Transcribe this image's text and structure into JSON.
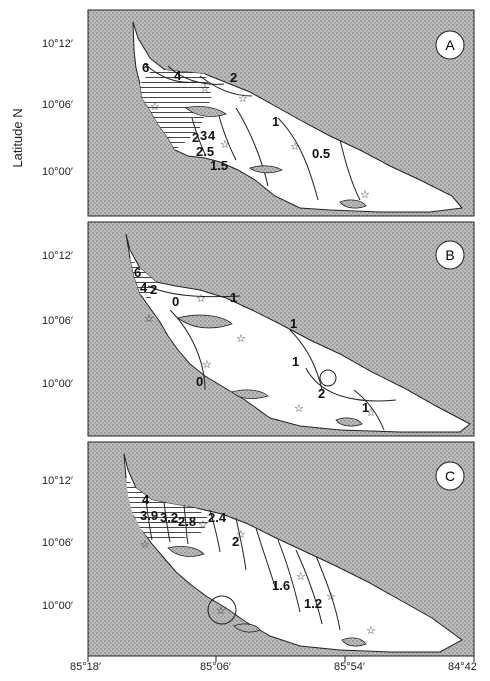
{
  "axis": {
    "y_label": "Latitude N",
    "lon_ticks": [
      "85°18′",
      "85°06′",
      "85°54′",
      "84°42"
    ],
    "lat_ticks": [
      "10°12′",
      "10°06′",
      "10°00′"
    ]
  },
  "panels": [
    {
      "letter": "A",
      "labels": [
        "6",
        "4",
        "2",
        "2",
        "3",
        "4",
        "2.5",
        "1.5",
        "1",
        "0.5"
      ]
    },
    {
      "letter": "B",
      "labels": [
        "6",
        "4",
        "2",
        "0",
        "1",
        "1",
        "1",
        "0",
        "2",
        "1"
      ]
    },
    {
      "letter": "C",
      "labels": [
        "4",
        "3.9",
        "3.2",
        "2.8",
        "2.4",
        "2",
        "1.6",
        "1.2"
      ]
    }
  ],
  "colors": {
    "land": "#b4b4b4",
    "lake": "#ffffff",
    "line": "#222222"
  }
}
